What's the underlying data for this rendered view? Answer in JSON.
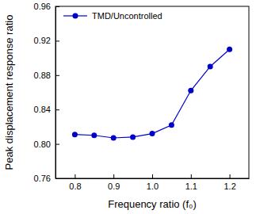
{
  "chart_data": {
    "type": "line",
    "x_label": "Frequency ratio (f₀)",
    "y_label": "Peak displacement response ratio",
    "x": [
      0.8,
      0.85,
      0.9,
      0.95,
      1.0,
      1.05,
      1.1,
      1.15,
      1.2
    ],
    "series": [
      {
        "name": "TMD/Uncontrolled",
        "color": "#0000cc",
        "marker": "circle",
        "line_style": "solid",
        "values": [
          0.811,
          0.81,
          0.807,
          0.808,
          0.812,
          0.822,
          0.862,
          0.89,
          0.91
        ]
      }
    ],
    "xlim": [
      0.75,
      1.25
    ],
    "xticks": [
      0.8,
      0.9,
      {
        "value": 1.0,
        "label": "1.0"
      },
      1.1,
      1.2
    ],
    "ylim": [
      0.76,
      0.96
    ],
    "yticks": [
      0.76,
      {
        "value": 0.8,
        "label": "0.80"
      },
      0.84,
      0.88,
      0.92,
      0.96
    ],
    "grid": false,
    "legend": "upper left"
  }
}
